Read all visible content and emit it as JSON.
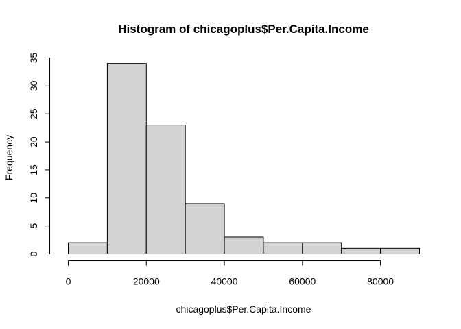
{
  "chart_data": {
    "type": "bar",
    "title": "Histogram of chicagoplus$Per.Capita.Income",
    "xlabel": "chicagoplus$Per.Capita.Income",
    "ylabel": "Frequency",
    "bins": [
      {
        "start": 0,
        "end": 10000,
        "count": 2
      },
      {
        "start": 10000,
        "end": 20000,
        "count": 34
      },
      {
        "start": 20000,
        "end": 30000,
        "count": 23
      },
      {
        "start": 30000,
        "end": 40000,
        "count": 9
      },
      {
        "start": 40000,
        "end": 50000,
        "count": 3
      },
      {
        "start": 50000,
        "end": 60000,
        "count": 2
      },
      {
        "start": 60000,
        "end": 70000,
        "count": 2
      },
      {
        "start": 70000,
        "end": 80000,
        "count": 1
      },
      {
        "start": 80000,
        "end": 90000,
        "count": 1
      }
    ],
    "xlim": [
      0,
      90000
    ],
    "ylim": [
      0,
      35
    ],
    "x_ticks": [
      0,
      20000,
      40000,
      60000,
      80000
    ],
    "x_tick_labels": [
      "0",
      "20000",
      "40000",
      "60000",
      "80000"
    ],
    "y_ticks": [
      0,
      5,
      10,
      15,
      20,
      25,
      30,
      35
    ],
    "y_tick_labels": [
      "0",
      "5",
      "10",
      "15",
      "20",
      "25",
      "30",
      "35"
    ],
    "bar_color": "#d3d3d3",
    "grid": false
  }
}
